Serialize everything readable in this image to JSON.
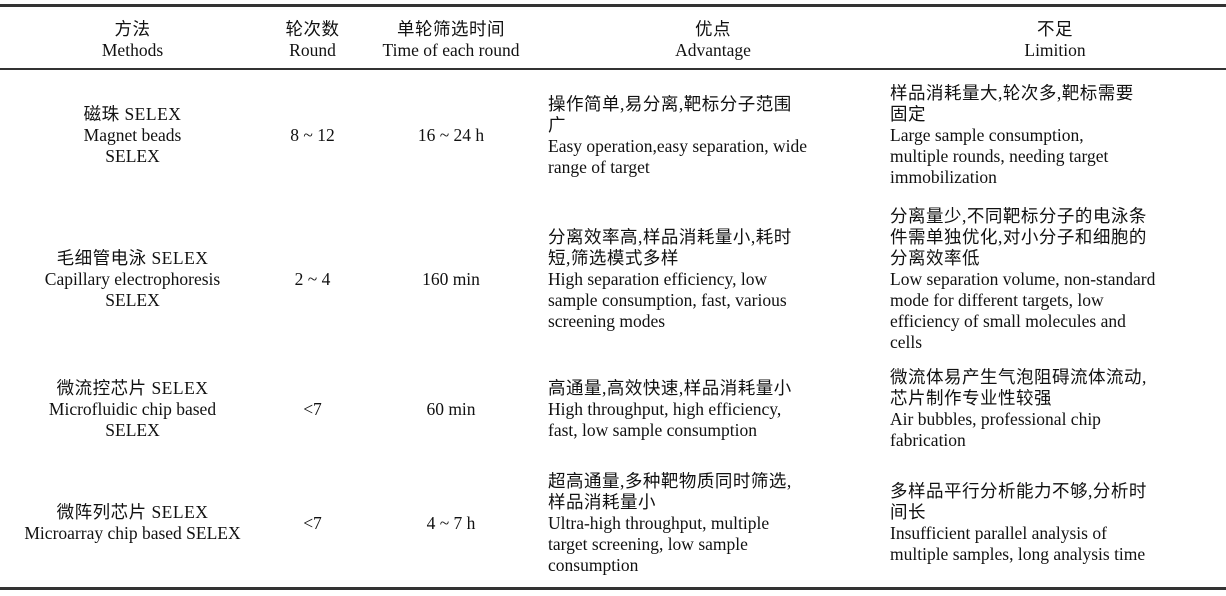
{
  "header": [
    {
      "zh": "方法",
      "en": "Methods"
    },
    {
      "zh": "轮次数",
      "en": "Round"
    },
    {
      "zh": "单轮筛选时间",
      "en": "Time of each round"
    },
    {
      "zh": "优点",
      "en": "Advantage"
    },
    {
      "zh": "不足",
      "en": "Limition"
    }
  ],
  "rows": [
    {
      "method_zh": "磁珠 SELEX",
      "method_en": [
        "Magnet beads",
        "SELEX"
      ],
      "round": "8 ~ 12",
      "time": "16 ~ 24 h",
      "adv_zh": [
        "操作简单,易分离,靶标分子范围",
        "广"
      ],
      "adv_en": [
        "Easy operation,easy separation, wide",
        "range of target"
      ],
      "lim_zh": [
        "样品消耗量大,轮次多,靶标需要",
        "固定"
      ],
      "lim_en": [
        "Large sample consumption,",
        "multiple rounds, needing target",
        "immobilization"
      ]
    },
    {
      "method_zh": "毛细管电泳 SELEX",
      "method_en": [
        "Capillary electrophoresis",
        "SELEX"
      ],
      "round": "2 ~ 4",
      "time": "160 min",
      "adv_zh": [
        "分离效率高,样品消耗量小,耗时",
        "短,筛选模式多样"
      ],
      "adv_en": [
        "High separation efficiency, low",
        "sample consumption, fast, various",
        "screening modes"
      ],
      "lim_zh": [
        "分离量少,不同靶标分子的电泳条",
        "件需单独优化,对小分子和细胞的",
        "分离效率低"
      ],
      "lim_en": [
        "Low separation volume, non-standard",
        "mode for different targets, low",
        "efficiency of small molecules and",
        "cells"
      ]
    },
    {
      "method_zh": "微流控芯片 SELEX",
      "method_en": [
        "Microfluidic chip based",
        "SELEX"
      ],
      "round": "<7",
      "time": "60 min",
      "adv_zh": [
        "高通量,高效快速,样品消耗量小"
      ],
      "adv_en": [
        "High throughput, high efficiency,",
        "fast, low sample consumption"
      ],
      "lim_zh": [
        "微流体易产生气泡阻碍流体流动,",
        "芯片制作专业性较强"
      ],
      "lim_en": [
        "Air bubbles, professional chip",
        "fabrication"
      ]
    },
    {
      "method_zh": "微阵列芯片 SELEX",
      "method_en": [
        "Microarray chip based SELEX"
      ],
      "round": "<7",
      "time": "4 ~ 7 h",
      "adv_zh": [
        "超高通量,多种靶物质同时筛选,",
        "样品消耗量小"
      ],
      "adv_en": [
        "Ultra-high throughput, multiple",
        "target screening, low sample",
        "consumption"
      ],
      "lim_zh": [
        "多样品平行分析能力不够,分析时",
        "间长"
      ],
      "lim_en": [
        "Insufficient parallel analysis of",
        "multiple samples, long analysis time"
      ]
    }
  ]
}
